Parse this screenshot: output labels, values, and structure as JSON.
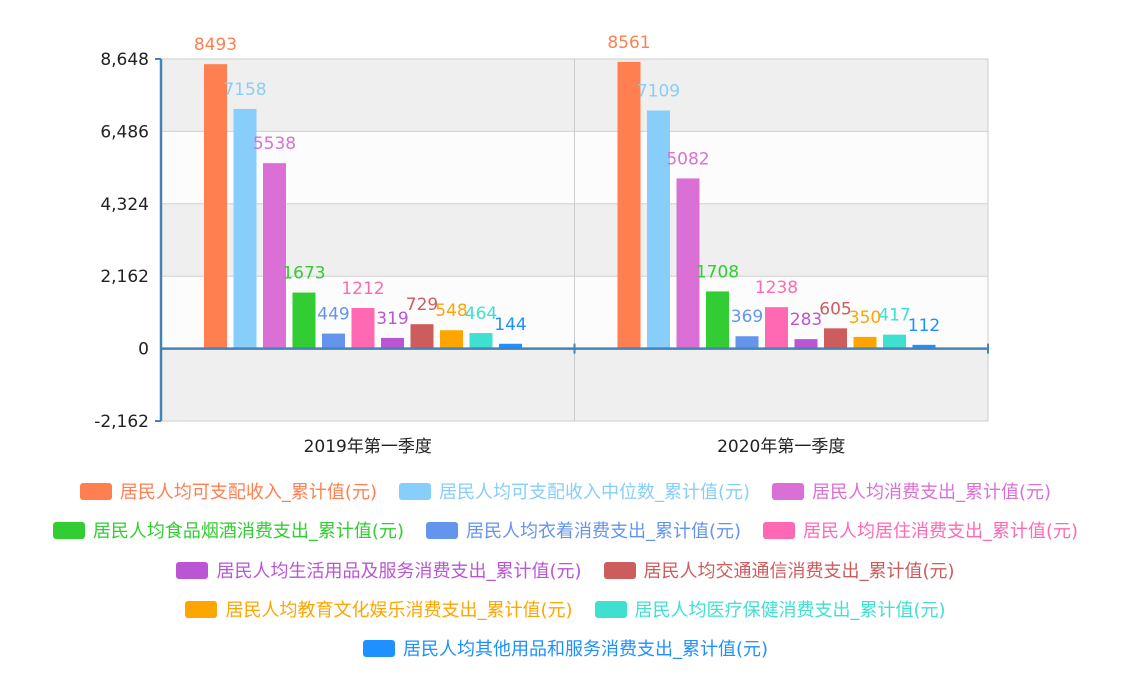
{
  "chart_data": {
    "type": "bar",
    "categories": [
      "2019年第一季度",
      "2020年第一季度"
    ],
    "ylim": [
      -2162,
      8648
    ],
    "yticks": [
      "8,648",
      "6,486",
      "4,324",
      "2,162",
      "0",
      "-2,162"
    ],
    "ytick_values": [
      8648,
      6486,
      4324,
      2162,
      0,
      -2162
    ],
    "grid": true,
    "legend_position": "bottom",
    "series": [
      {
        "name": "居民人均可支配收入_累计值(元)",
        "color": "#FF7F50",
        "values": [
          8493,
          8561
        ]
      },
      {
        "name": "居民人均可支配收入中位数_累计值(元)",
        "color": "#87CEFA",
        "values": [
          7158,
          7109
        ]
      },
      {
        "name": "居民人均消费支出_累计值(元)",
        "color": "#DA70D6",
        "values": [
          5538,
          5082
        ]
      },
      {
        "name": "居民人均食品烟酒消费支出_累计值(元)",
        "color": "#32CD32",
        "values": [
          1673,
          1708
        ]
      },
      {
        "name": "居民人均衣着消费支出_累计值(元)",
        "color": "#6495ED",
        "values": [
          449,
          369
        ]
      },
      {
        "name": "居民人均居住消费支出_累计值(元)",
        "color": "#FF69B4",
        "values": [
          1212,
          1238
        ]
      },
      {
        "name": "居民人均生活用品及服务消费支出_累计值(元)",
        "color": "#BA55D3",
        "values": [
          319,
          283
        ]
      },
      {
        "name": "居民人均交通通信消费支出_累计值(元)",
        "color": "#CD5C5C",
        "values": [
          729,
          605
        ]
      },
      {
        "name": "居民人均教育文化娱乐消费支出_累计值(元)",
        "color": "#FFA500",
        "values": [
          548,
          350
        ]
      },
      {
        "name": "居民人均医疗保健消费支出_累计值(元)",
        "color": "#40E0D0",
        "values": [
          464,
          417
        ]
      },
      {
        "name": "居民人均其他用品和服务消费支出_累计值(元)",
        "color": "#1E90FF",
        "values": [
          144,
          112
        ]
      }
    ]
  },
  "legend_rows": [
    [
      0,
      1,
      2
    ],
    [
      3,
      4,
      5
    ],
    [
      6,
      7
    ],
    [
      8,
      9
    ],
    [
      10
    ]
  ]
}
